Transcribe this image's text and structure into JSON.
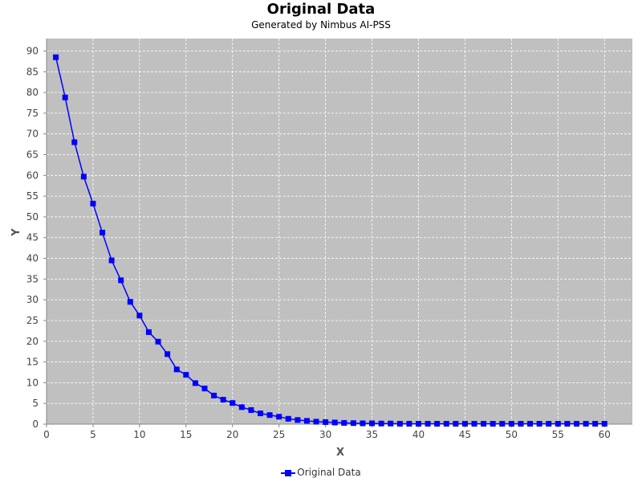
{
  "chart_data": {
    "type": "line",
    "title": "Original Data",
    "subtitle": "Generated by Nimbus AI-PSS",
    "xlabel": "X",
    "ylabel": "Y",
    "xlim": [
      0,
      63
    ],
    "ylim": [
      0,
      93
    ],
    "xticks": [
      0,
      5,
      10,
      15,
      20,
      25,
      30,
      35,
      40,
      45,
      50,
      55,
      60
    ],
    "yticks": [
      0,
      5,
      10,
      15,
      20,
      25,
      30,
      35,
      40,
      45,
      50,
      55,
      60,
      65,
      70,
      75,
      80,
      85,
      90
    ],
    "grid": true,
    "legend_position": "bottom",
    "colors": {
      "plot_background": "#c0c0c0",
      "series": "#0000ff",
      "grid": "#ffffff"
    },
    "x": [
      1,
      2,
      3,
      4,
      5,
      6,
      7,
      8,
      9,
      10,
      11,
      12,
      13,
      14,
      15,
      16,
      17,
      18,
      19,
      20,
      21,
      22,
      23,
      24,
      25,
      26,
      27,
      28,
      29,
      30,
      31,
      32,
      33,
      34,
      35,
      36,
      37,
      38,
      39,
      40,
      41,
      42,
      43,
      44,
      45,
      46,
      47,
      48,
      49,
      50,
      51,
      52,
      53,
      54,
      55,
      56,
      57,
      58,
      59,
      60
    ],
    "series": [
      {
        "name": "Original Data",
        "marker": "square",
        "values": [
          88.5,
          78.8,
          68.0,
          59.7,
          53.2,
          46.2,
          39.5,
          34.7,
          29.5,
          26.2,
          22.2,
          19.9,
          16.9,
          13.2,
          11.9,
          9.9,
          8.6,
          6.9,
          5.9,
          5.1,
          4.1,
          3.4,
          2.6,
          2.2,
          1.8,
          1.3,
          1.0,
          0.8,
          0.6,
          0.5,
          0.4,
          0.3,
          0.25,
          0.2,
          0.2,
          0.15,
          0.15,
          0.1,
          0.1,
          0.1,
          0.1,
          0.1,
          0.1,
          0.1,
          0.1,
          0.1,
          0.1,
          0.1,
          0.1,
          0.1,
          0.1,
          0.1,
          0.1,
          0.1,
          0.1,
          0.1,
          0.1,
          0.1,
          0.1,
          0.1
        ]
      }
    ]
  }
}
